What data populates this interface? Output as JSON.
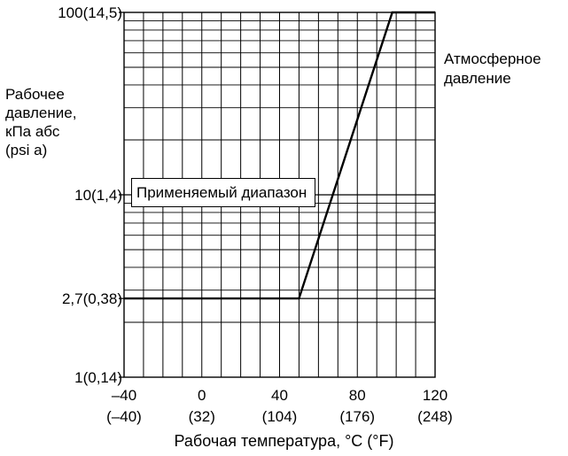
{
  "chart_data": {
    "type": "line",
    "xlabel": "Рабочая температура, °C (°F)",
    "ylabel_lines": [
      "Рабочее",
      "давление,",
      "кПа абс",
      "(psi a)"
    ],
    "x_ticks": [
      {
        "value": -40,
        "c": "–40",
        "f": "(–40)"
      },
      {
        "value": 0,
        "c": "0",
        "f": "(32)"
      },
      {
        "value": 40,
        "c": "40",
        "f": "(104)"
      },
      {
        "value": 80,
        "c": "80",
        "f": "(176)"
      },
      {
        "value": 120,
        "c": "120",
        "f": "(248)"
      }
    ],
    "y_ticks": [
      {
        "value": 1,
        "label": "1(0,14)"
      },
      {
        "value": 2.7,
        "label": "2,7(0,38)"
      },
      {
        "value": 10,
        "label": "10(1,4)"
      },
      {
        "value": 100,
        "label": "100(14,5)"
      }
    ],
    "xlim": [
      -40,
      120
    ],
    "ylim": [
      1,
      100
    ],
    "y_scale": "log",
    "grid": true,
    "series": [
      {
        "x": [
          -40,
          50,
          98,
          120
        ],
        "y": [
          2.7,
          2.7,
          100,
          100
        ]
      }
    ],
    "annotations": {
      "atmospheric_lines": [
        "Атмосферное",
        "давление"
      ],
      "region_label": "Применяемый диапазон"
    }
  }
}
